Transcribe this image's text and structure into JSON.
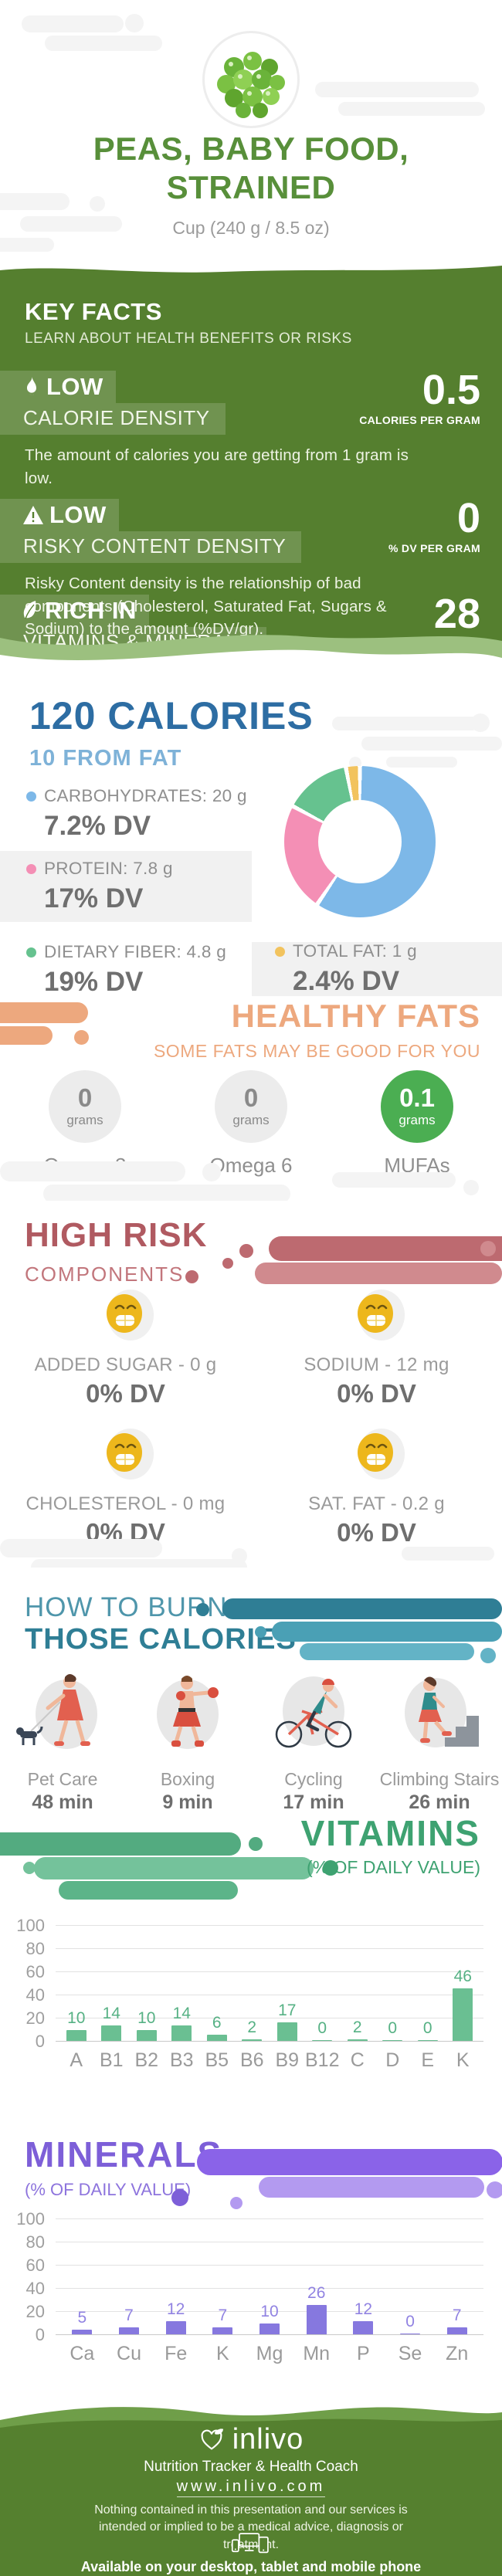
{
  "header": {
    "title_line1": "PEAS, BABY FOOD,",
    "title_line2": "STRAINED",
    "serving": "Cup (240 g / 8.5 oz)"
  },
  "key_facts": {
    "heading": "KEY FACTS",
    "subheading": "LEARN ABOUT HEALTH BENEFITS OR RISKS",
    "facts": [
      {
        "badge": "LOW",
        "icon": "flame-icon",
        "label": "CALORIE DENSITY",
        "value": "0.5",
        "unit": "CALORIES PER GRAM",
        "description": "The amount of calories you are getting from 1 gram is low."
      },
      {
        "badge": "LOW",
        "icon": "warning-triangle-icon",
        "label": "RISKY CONTENT DENSITY",
        "value": "0",
        "unit": "% DV PER GRAM",
        "description": "Risky Content density is the relationship of bad components (Cholesterol, Saturated Fat, Sugars & Sodium) to the amount (%DV/gr)."
      },
      {
        "badge": "RICH IN",
        "icon": "leaf-icon",
        "label": "VITAMINS & MINERALS",
        "value": "28",
        "unit": "% DV PER CALORIE",
        "description": ""
      }
    ]
  },
  "calories": {
    "title": "120 CALORIES",
    "subtitle": "10 FROM FAT",
    "macros": [
      {
        "label": "CARBOHYDRATES: 20 g",
        "dv": "7.2% DV",
        "color": "#7db8e8"
      },
      {
        "label": "PROTEIN: 7.8 g",
        "dv": "17% DV",
        "color": "#f48fb5"
      },
      {
        "label": "DIETARY FIBER: 4.8 g",
        "dv": "19% DV",
        "color": "#66c28f"
      },
      {
        "label": "TOTAL FAT: 1 g",
        "dv": "2.4% DV",
        "color": "#f2c35e"
      }
    ]
  },
  "healthy_fats": {
    "heading": "HEALTHY FATS",
    "subheading": "SOME FATS MAY BE GOOD FOR YOU",
    "items": [
      {
        "value": "0",
        "unit": "grams",
        "label": "Omega 3",
        "highlight": false
      },
      {
        "value": "0",
        "unit": "grams",
        "label": "Omega 6",
        "highlight": false
      },
      {
        "value": "0.1",
        "unit": "grams",
        "label": "MUFAs",
        "highlight": true
      }
    ]
  },
  "high_risk": {
    "heading": "HIGH RISK",
    "subheading": "COMPONENTS",
    "items": [
      {
        "label": "ADDED SUGAR - 0 g",
        "dv": "0% DV",
        "icon": "grinning-face-icon"
      },
      {
        "label": "SODIUM - 12 mg",
        "dv": "0% DV",
        "icon": "grinning-face-icon"
      },
      {
        "label": "CHOLESTEROL - 0 mg",
        "dv": "0% DV",
        "icon": "grinning-face-icon"
      },
      {
        "label": "SAT. FAT - 0.2 g",
        "dv": "0% DV",
        "icon": "grinning-face-icon"
      }
    ]
  },
  "burn": {
    "heading_line1": "HOW TO BURN",
    "heading_line2": "THOSE CALORIES",
    "activities": [
      {
        "label": "Pet Care",
        "duration": "48 min",
        "icon": "dog-walking-icon"
      },
      {
        "label": "Boxing",
        "duration": "9 min",
        "icon": "boxing-icon"
      },
      {
        "label": "Cycling",
        "duration": "17 min",
        "icon": "cycling-icon"
      },
      {
        "label": "Climbing Stairs",
        "duration": "26 min",
        "icon": "climbing-stairs-icon"
      }
    ]
  },
  "vitamins_section": {
    "heading": "VITAMINS",
    "subheading": "(% OF DAILY VALUE)"
  },
  "minerals_section": {
    "heading": "MINERALS",
    "subheading": "(% OF DAILY VALUE)"
  },
  "chart_data": [
    {
      "type": "pie",
      "donut": true,
      "title": "120 CALORIES macronutrient breakdown",
      "labels": [
        "Carbohydrates",
        "Protein",
        "Dietary Fiber",
        "Total Fat"
      ],
      "values_grams": [
        20,
        7.8,
        4.8,
        1
      ],
      "colors": [
        "#7db8e8",
        "#f48fb5",
        "#66c28f",
        "#f2c35e"
      ],
      "legend_position": "left"
    },
    {
      "type": "bar",
      "title": "VITAMINS",
      "subtitle": "(% OF DAILY VALUE)",
      "categories": [
        "A",
        "B1",
        "B2",
        "B3",
        "B5",
        "B6",
        "B9",
        "B12",
        "C",
        "D",
        "E",
        "K"
      ],
      "values": [
        10,
        14,
        10,
        14,
        6,
        2,
        17,
        0,
        2,
        0,
        0,
        46
      ],
      "ylim": [
        0,
        100
      ],
      "yticks": [
        0,
        20,
        40,
        60,
        80,
        100
      ],
      "grid": true,
      "bar_color": "#6abf92",
      "label_color": "#56b184"
    },
    {
      "type": "bar",
      "title": "MINERALS",
      "subtitle": "(% OF DAILY VALUE)",
      "categories": [
        "Ca",
        "Cu",
        "Fe",
        "K",
        "Mg",
        "Mn",
        "P",
        "Se",
        "Zn"
      ],
      "values": [
        5,
        7,
        12,
        7,
        10,
        26,
        12,
        0,
        7
      ],
      "ylim": [
        0,
        100
      ],
      "yticks": [
        0,
        20,
        40,
        60,
        80,
        100
      ],
      "grid": true,
      "bar_color": "#8678df",
      "label_color": "#9183e2"
    }
  ],
  "footer": {
    "brand": "inlivo",
    "tagline": "Nutrition Tracker & Health Coach",
    "url": "www.inlivo.com",
    "disclaimer": "Nothing contained in this presentation and our services is intended or implied to be a medical advice, diagnosis or treatment.",
    "availability": "Available on your desktop, tablet and mobile phone"
  },
  "icons": [
    "flame-icon",
    "warning-triangle-icon",
    "leaf-icon",
    "grinning-face-icon",
    "dog-walking-icon",
    "boxing-icon",
    "cycling-icon",
    "climbing-stairs-icon",
    "heart-leaf-logo-icon",
    "devices-icon"
  ],
  "colors": {
    "green_dark": "#557f2f",
    "green_wave_light": "#9cc07f",
    "title_green": "#588f3a",
    "blue_dark": "#2d6da3",
    "blue_light": "#7eb2d8",
    "orange": "#eda87e",
    "red_dark": "#b05a61",
    "red_light": "#d08a8e",
    "teal_dark": "#2f7e95",
    "teal_light": "#4aa0b5",
    "vitamins_green": "#3ea271",
    "minerals_purple": "#7d5fd8",
    "mufa_green": "#4bae52",
    "smiley_yellow": "#edb71c"
  }
}
